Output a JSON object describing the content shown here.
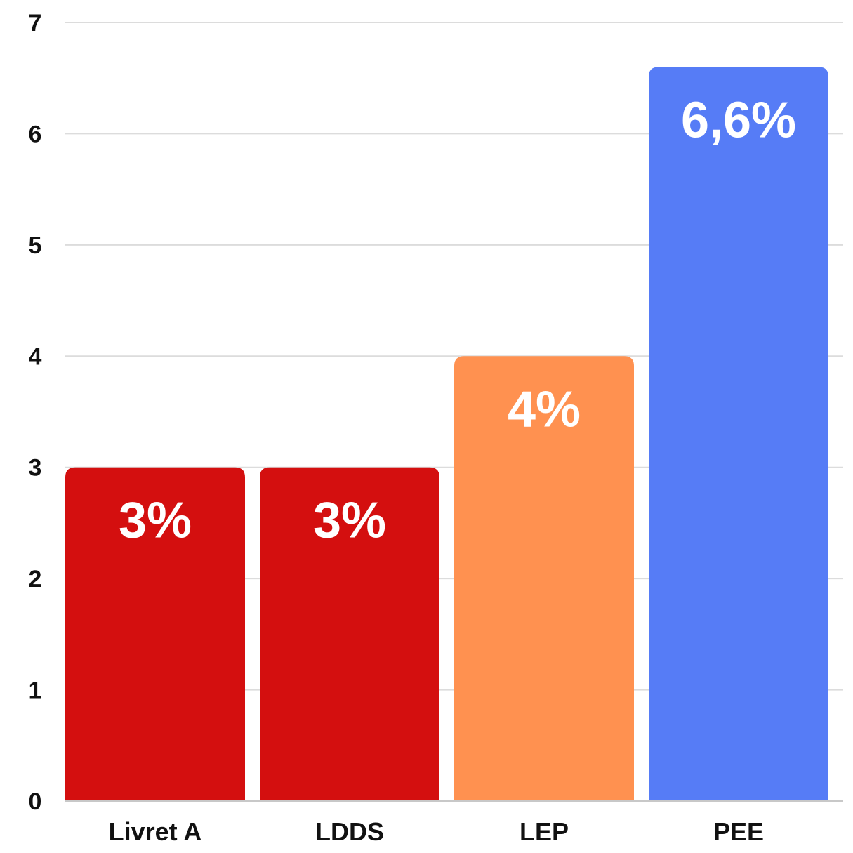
{
  "chart_data": {
    "type": "bar",
    "categories": [
      "Livret A",
      "LDDS",
      "LEP",
      "PEE"
    ],
    "values": [
      3,
      3,
      4,
      6.6
    ],
    "data_labels": [
      "3%",
      "3%",
      "4%",
      "6,6%"
    ],
    "colors": [
      "#d40f0f",
      "#d40f0f",
      "#ff9150",
      "#567cf6"
    ],
    "label_color": "#ffffff",
    "ylim": [
      0,
      7
    ],
    "yticks": [
      0,
      1,
      2,
      3,
      4,
      5,
      6,
      7
    ],
    "grid": true,
    "title": "",
    "xlabel": "",
    "ylabel": ""
  }
}
